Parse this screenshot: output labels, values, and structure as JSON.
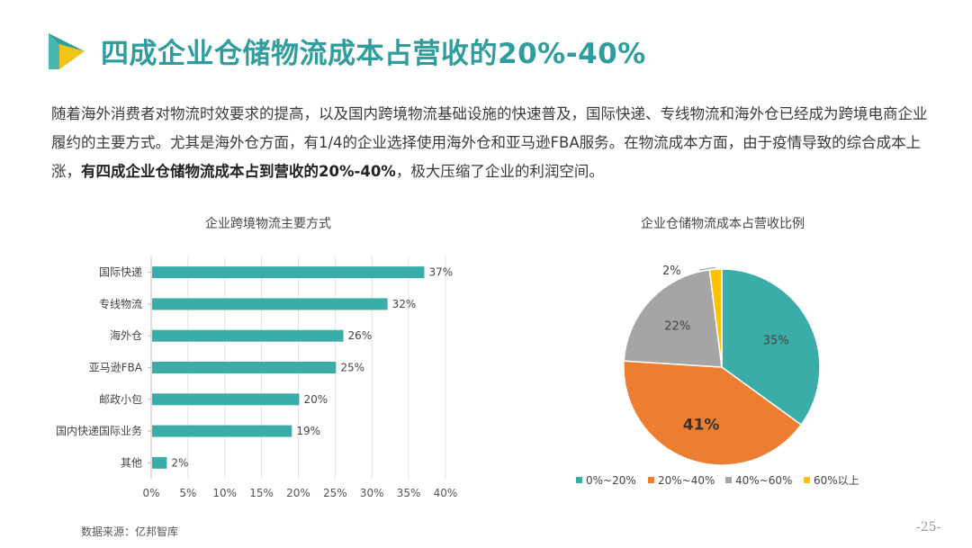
{
  "title": "四成企业仓储物流成本占营收的20%-40%",
  "intro": {
    "part1": "随着海外消费者对物流时效要求的提高，以及国内跨境物流基础设施的快速普及，国际快递、专线物流和海外仓已经成为跨境电商企业履约的主要方式。尤其是海外仓方面，有1/4的企业选择使用海外仓和亚马逊FBA服务。在物流成本方面，由于疫情导致的综合成本上涨，",
    "bold": "有四成企业仓储物流成本占到营收的20%-40%",
    "part2": "，极大压缩了企业的利润空间。"
  },
  "colors": {
    "brand": "#2f9d9d",
    "bar": "#3aada8",
    "pie": [
      "#3aada8",
      "#ed7d31",
      "#a5a5a5",
      "#ffc000"
    ]
  },
  "chart_data": [
    {
      "type": "bar",
      "orientation": "horizontal",
      "title": "企业跨境物流主要方式",
      "categories": [
        "国际快递",
        "专线物流",
        "海外仓",
        "亚马逊FBA",
        "邮政小包",
        "国内快递国际业务",
        "其他"
      ],
      "values": [
        37,
        32,
        26,
        25,
        20,
        19,
        2
      ],
      "value_labels": [
        "37%",
        "32%",
        "26%",
        "25%",
        "20%",
        "19%",
        "2%"
      ],
      "xlim": [
        0,
        40
      ],
      "xticks": [
        "0%",
        "5%",
        "10%",
        "15%",
        "20%",
        "25%",
        "30%",
        "35%",
        "40%"
      ],
      "grid": true
    },
    {
      "type": "pie",
      "title": "企业仓储物流成本占营收比例",
      "labels": [
        "0%~20%",
        "20%~40%",
        "40%~60%",
        "60%以上"
      ],
      "values": [
        35,
        41,
        22,
        2
      ],
      "value_labels": [
        "35%",
        "41%",
        "22%",
        "2%"
      ],
      "legend": "bottom"
    }
  ],
  "footer": {
    "source": "数据来源：亿邦智库",
    "page": "-25-"
  }
}
